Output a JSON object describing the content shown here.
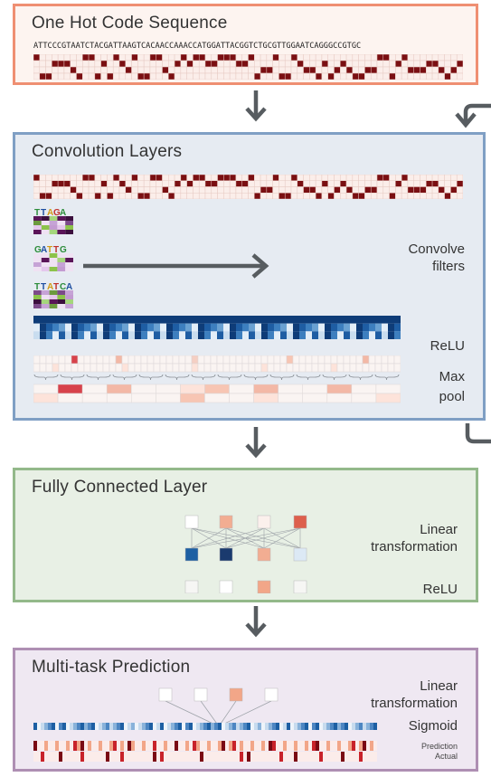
{
  "colors": {
    "onehot_border": "#ef8f72",
    "onehot_bg": "#fdf4f0",
    "conv_border": "#7f9fc4",
    "conv_bg": "#e6ebf2",
    "fc_border": "#93b98a",
    "fc_bg": "#e8f0e5",
    "mt_border": "#ae8fb3",
    "mt_bg": "#efe8f2",
    "arrow": "#575c60",
    "onehot_fill": "#7a0f12",
    "relu_dark": "#1b4c8a",
    "relu_light": "#b6d2ea"
  },
  "onehot": {
    "title": "One Hot Code Sequence",
    "sequence": "ATTCCCGTAATCTACGATTAAGTCACAACCAAACCATGGATTACGGTCTGCGTTGGAATCAGGGCCGTGC"
  },
  "conv": {
    "title": "Convolution Layers",
    "convolve_label_1": "Convolve",
    "convolve_label_2": "filters",
    "relu_label": "ReLU",
    "maxpool_label_1": "Max",
    "maxpool_label_2": "pool",
    "motif_1": "TTAGA",
    "motif_2": "GATTG",
    "motif_3": "TTATCA"
  },
  "fc": {
    "title": "Fully Connected Layer",
    "linear_label_1": "Linear",
    "linear_label_2": "transformation",
    "relu_label": "ReLU"
  },
  "mt": {
    "title": "Multi-task Prediction",
    "linear_label_1": "Linear",
    "linear_label_2": "transformation",
    "sigmoid_label": "Sigmoid",
    "prediction_label": "Prediction",
    "actual_label": "Actual"
  }
}
